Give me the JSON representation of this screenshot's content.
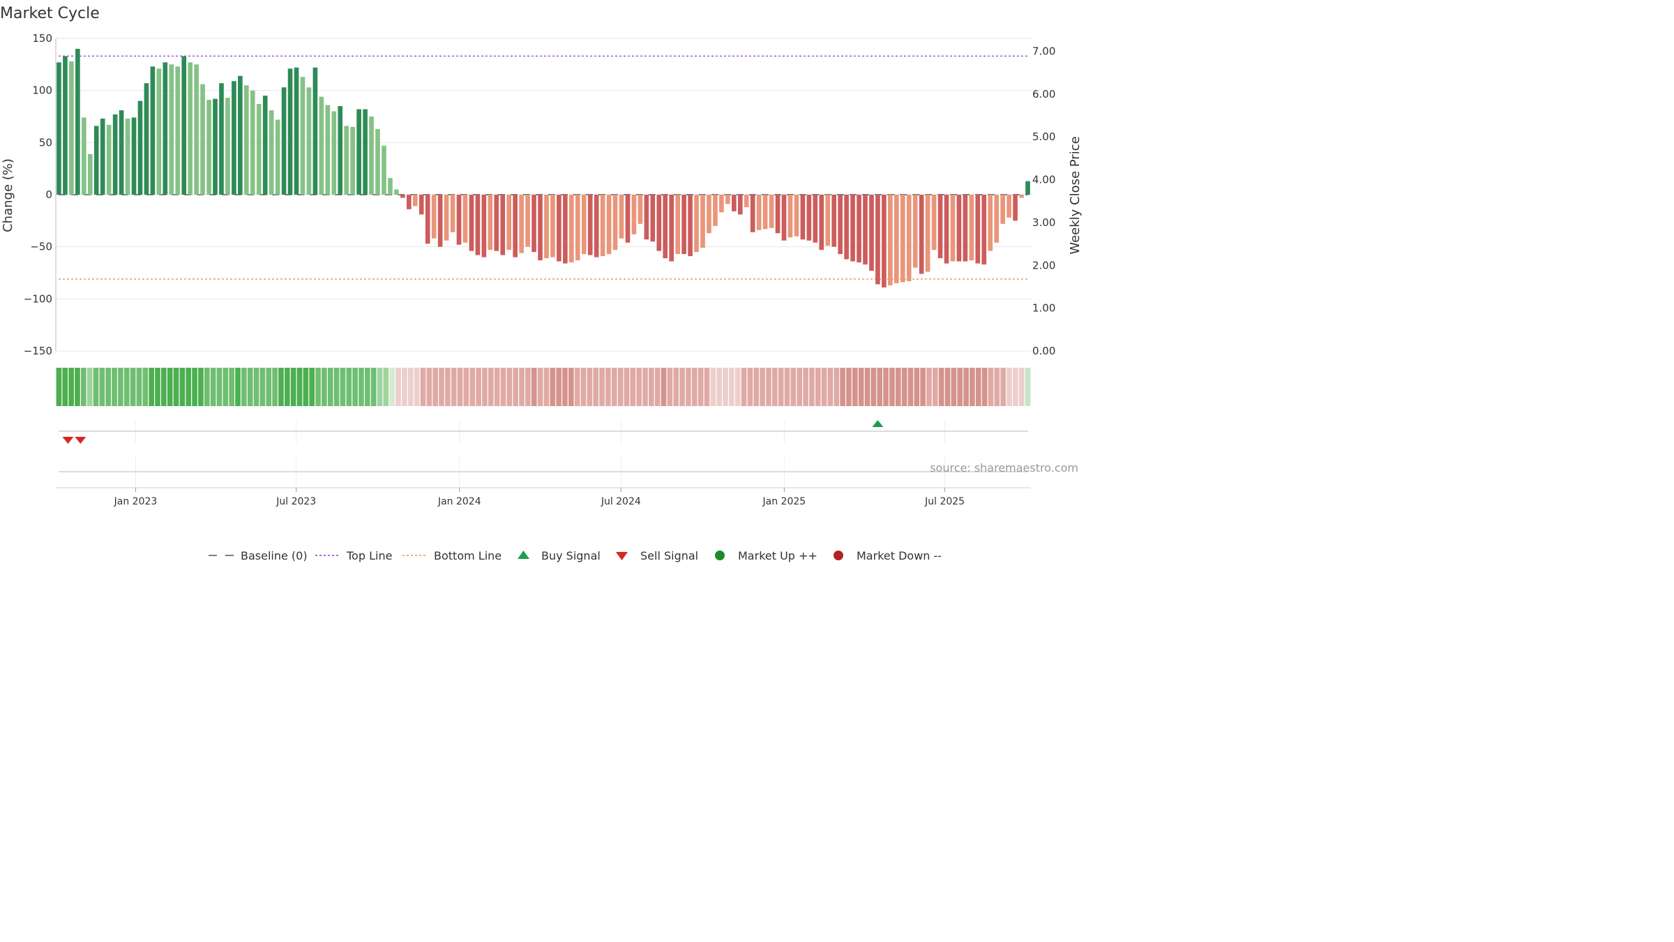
{
  "chart_data": {
    "type": "bar",
    "title": "Market Cycle",
    "ylabel": "Change (%)",
    "y2label": "Weekly Close Price",
    "ylim": [
      -150,
      150
    ],
    "y2lim": [
      0,
      7.3
    ],
    "yticks": [
      {
        "v": 150,
        "label": "150"
      },
      {
        "v": 100,
        "label": "100"
      },
      {
        "v": 50,
        "label": "50"
      },
      {
        "v": 0,
        "label": "0"
      },
      {
        "v": -50,
        "label": "−50"
      },
      {
        "v": -100,
        "label": "−100"
      },
      {
        "v": -150,
        "label": "−150"
      }
    ],
    "y2ticks": [
      {
        "v": 7,
        "label": "7.00"
      },
      {
        "v": 6,
        "label": "6.00"
      },
      {
        "v": 5,
        "label": "5.00"
      },
      {
        "v": 4,
        "label": "4.00"
      },
      {
        "v": 3,
        "label": "3.00"
      },
      {
        "v": 2,
        "label": "2.00"
      },
      {
        "v": 1,
        "label": "1.00"
      },
      {
        "v": 0,
        "label": "0.00"
      }
    ],
    "x_start": "2022-10-03",
    "x_end": "2025-10-06",
    "xticks": [
      {
        "date": "2023-01-01",
        "label": "Jan 2023"
      },
      {
        "date": "2023-07-01",
        "label": "Jul 2023"
      },
      {
        "date": "2024-01-01",
        "label": "Jan 2024"
      },
      {
        "date": "2024-07-01",
        "label": "Jul 2024"
      },
      {
        "date": "2025-01-01",
        "label": "Jan 2025"
      },
      {
        "date": "2025-07-01",
        "label": "Jul 2025"
      }
    ],
    "top_line": 133,
    "bottom_line": -81,
    "baseline": 0,
    "values": [
      127,
      133,
      128,
      140,
      74,
      39,
      66,
      73,
      67,
      77,
      81,
      73,
      74,
      90,
      107,
      123,
      121,
      127,
      125,
      123,
      133,
      127,
      125,
      106,
      91,
      92,
      107,
      93,
      109,
      114,
      105,
      100,
      87,
      95,
      81,
      72,
      103,
      121,
      122,
      113,
      103,
      122,
      94,
      86,
      80,
      85,
      66,
      65,
      82,
      82,
      75,
      63,
      47,
      16,
      5,
      -3,
      -14,
      -11,
      -19,
      -47,
      -42,
      -50,
      -44,
      -36,
      -48,
      -46,
      -54,
      -58,
      -60,
      -53,
      -54,
      -58,
      -53,
      -60,
      -56,
      -50,
      -55,
      -63,
      -61,
      -60,
      -64,
      -66,
      -65,
      -63,
      -57,
      -58,
      -60,
      -59,
      -57,
      -53,
      -42,
      -46,
      -38,
      -28,
      -43,
      -45,
      -54,
      -61,
      -64,
      -57,
      -57,
      -59,
      -55,
      -51,
      -37,
      -30,
      -17,
      -9,
      -16,
      -19,
      -12,
      -36,
      -34,
      -33,
      -32,
      -37,
      -44,
      -41,
      -40,
      -43,
      -44,
      -46,
      -53,
      -49,
      -50,
      -57,
      -62,
      -64,
      -65,
      -67,
      -73,
      -86,
      -89,
      -87,
      -85,
      -84,
      -83,
      -70,
      -76,
      -74,
      -53,
      -61,
      -66,
      -64,
      -64,
      -64,
      -63,
      -66,
      -67,
      -54,
      -46,
      -28,
      -22,
      -25,
      -3,
      13
    ],
    "heat_strip": [
      3,
      3,
      3,
      3,
      2,
      1,
      2,
      2,
      2,
      2,
      2,
      2,
      2,
      2,
      2,
      3,
      3,
      3,
      3,
      3,
      3,
      3,
      3,
      3,
      2,
      2,
      2,
      2,
      2,
      3,
      2,
      2,
      2,
      2,
      2,
      2,
      3,
      3,
      3,
      3,
      3,
      3,
      2,
      2,
      2,
      2,
      2,
      2,
      2,
      2,
      2,
      2,
      1,
      1,
      0,
      -1,
      -1,
      -1,
      -1,
      -2,
      -2,
      -2,
      -2,
      -2,
      -2,
      -2,
      -2,
      -2,
      -2,
      -2,
      -2,
      -2,
      -2,
      -2,
      -2,
      -2,
      -2,
      -3,
      -2,
      -2,
      -3,
      -3,
      -3,
      -3,
      -2,
      -2,
      -2,
      -2,
      -2,
      -2,
      -2,
      -2,
      -2,
      -2,
      -2,
      -2,
      -2,
      -2,
      -3,
      -2,
      -2,
      -2,
      -2,
      -2,
      -2,
      -2,
      -1,
      -1,
      -1,
      -1,
      -1,
      -2,
      -2,
      -2,
      -2,
      -2,
      -2,
      -2,
      -2,
      -2,
      -2,
      -2,
      -2,
      -2,
      -2,
      -2,
      -2,
      -3,
      -3,
      -3,
      -3,
      -3,
      -3,
      -3,
      -3,
      -3,
      -3,
      -3,
      -3,
      -3,
      -3,
      -2,
      -2,
      -3,
      -3,
      -3,
      -3,
      -3,
      -3,
      -3,
      -3,
      -2,
      -2,
      -2,
      -1,
      -1,
      -1,
      1
    ],
    "buy_signals": [
      131
    ],
    "sell_signals": [
      1,
      3
    ],
    "source": "source: sharemaestro.com",
    "legend": [
      {
        "type": "dash",
        "label": "Baseline (0)",
        "color": "#555555"
      },
      {
        "type": "dot-line",
        "label": "Top Line",
        "color": "#9b59d0"
      },
      {
        "type": "dot-line",
        "label": "Bottom Line",
        "color": "#f0a35e"
      },
      {
        "type": "up-tri",
        "label": "Buy Signal",
        "color": "#1e9e4a"
      },
      {
        "type": "down-tri",
        "label": "Sell Signal",
        "color": "#d62728"
      },
      {
        "type": "dot",
        "label": "Market Up ++",
        "color": "#1f8a2a"
      },
      {
        "type": "dot",
        "label": "Market Down --",
        "color": "#b22222"
      }
    ],
    "colors": {
      "pos_strong": "#2e8b57",
      "pos_light": "#85c285",
      "neg_strong": "#cd5c5c",
      "neg_light": "#e9967a",
      "top_line": "#9b59d0",
      "bottom_line": "#f0a35e",
      "buy": "#1e9e4a",
      "sell": "#d62728"
    }
  }
}
